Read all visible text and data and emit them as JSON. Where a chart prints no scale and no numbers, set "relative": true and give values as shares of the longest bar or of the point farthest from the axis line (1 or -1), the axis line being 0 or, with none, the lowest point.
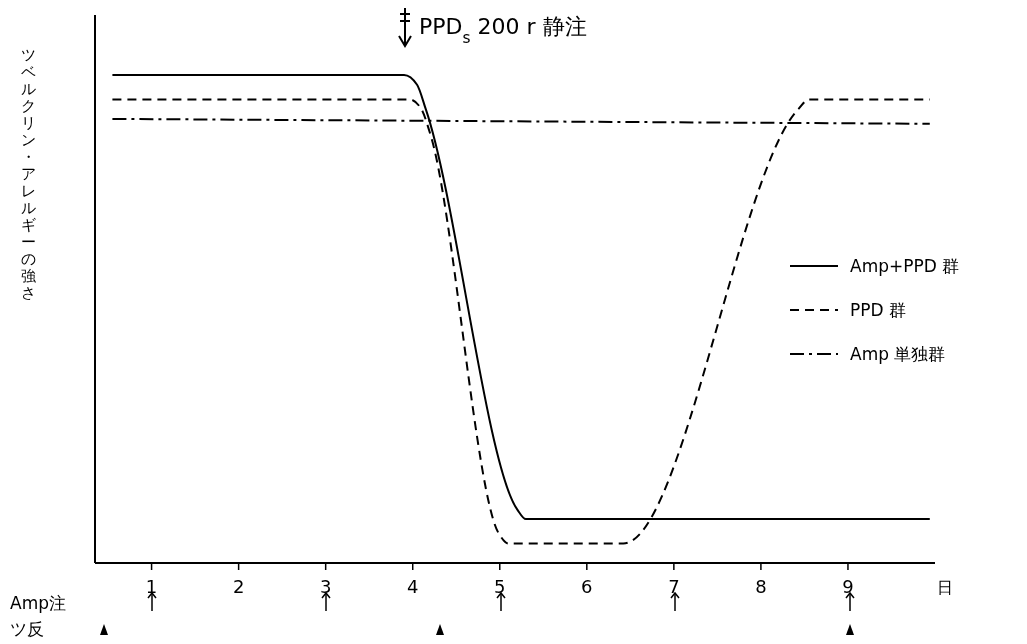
{
  "chart_data": {
    "type": "line",
    "relative": true,
    "ylabel": "ツベルクリン・アレルギーの強さ",
    "xlabel": "日",
    "xlim": [
      0.35,
      10
    ],
    "xticks": [
      1,
      2,
      3,
      4,
      5,
      6,
      7,
      8,
      9
    ],
    "legend": "right",
    "series": [
      {
        "name": "Amp+PPD 群",
        "color": "#000000",
        "line_style": "solid",
        "x": [
          0.55,
          3.9,
          4.05,
          4.15,
          5.2,
          5.3,
          9.94
        ],
        "values": [
          1,
          1,
          0.98,
          0.93,
          0.11,
          0.09,
          0.09
        ]
      },
      {
        "name": "PPD 群",
        "color": "#000000",
        "line_style": "dashed",
        "x": [
          0.55,
          3.96,
          4.1,
          4.2,
          4.99,
          5.1,
          6.42,
          8.43,
          8.55,
          9.94
        ],
        "values": [
          0.95,
          0.95,
          0.93,
          0.88,
          0.06,
          0.04,
          0.04,
          0.93,
          0.95,
          0.95
        ]
      },
      {
        "name": "Amp 単独群",
        "color": "#000000",
        "line_style": "dashdot",
        "x": [
          0.55,
          9.94
        ],
        "values": [
          0.91,
          0.9
        ]
      }
    ],
    "annotations": [
      "PPD$_{s}$ 200 r 静注",
      "Amp注",
      "ツ反"
    ]
  }
}
